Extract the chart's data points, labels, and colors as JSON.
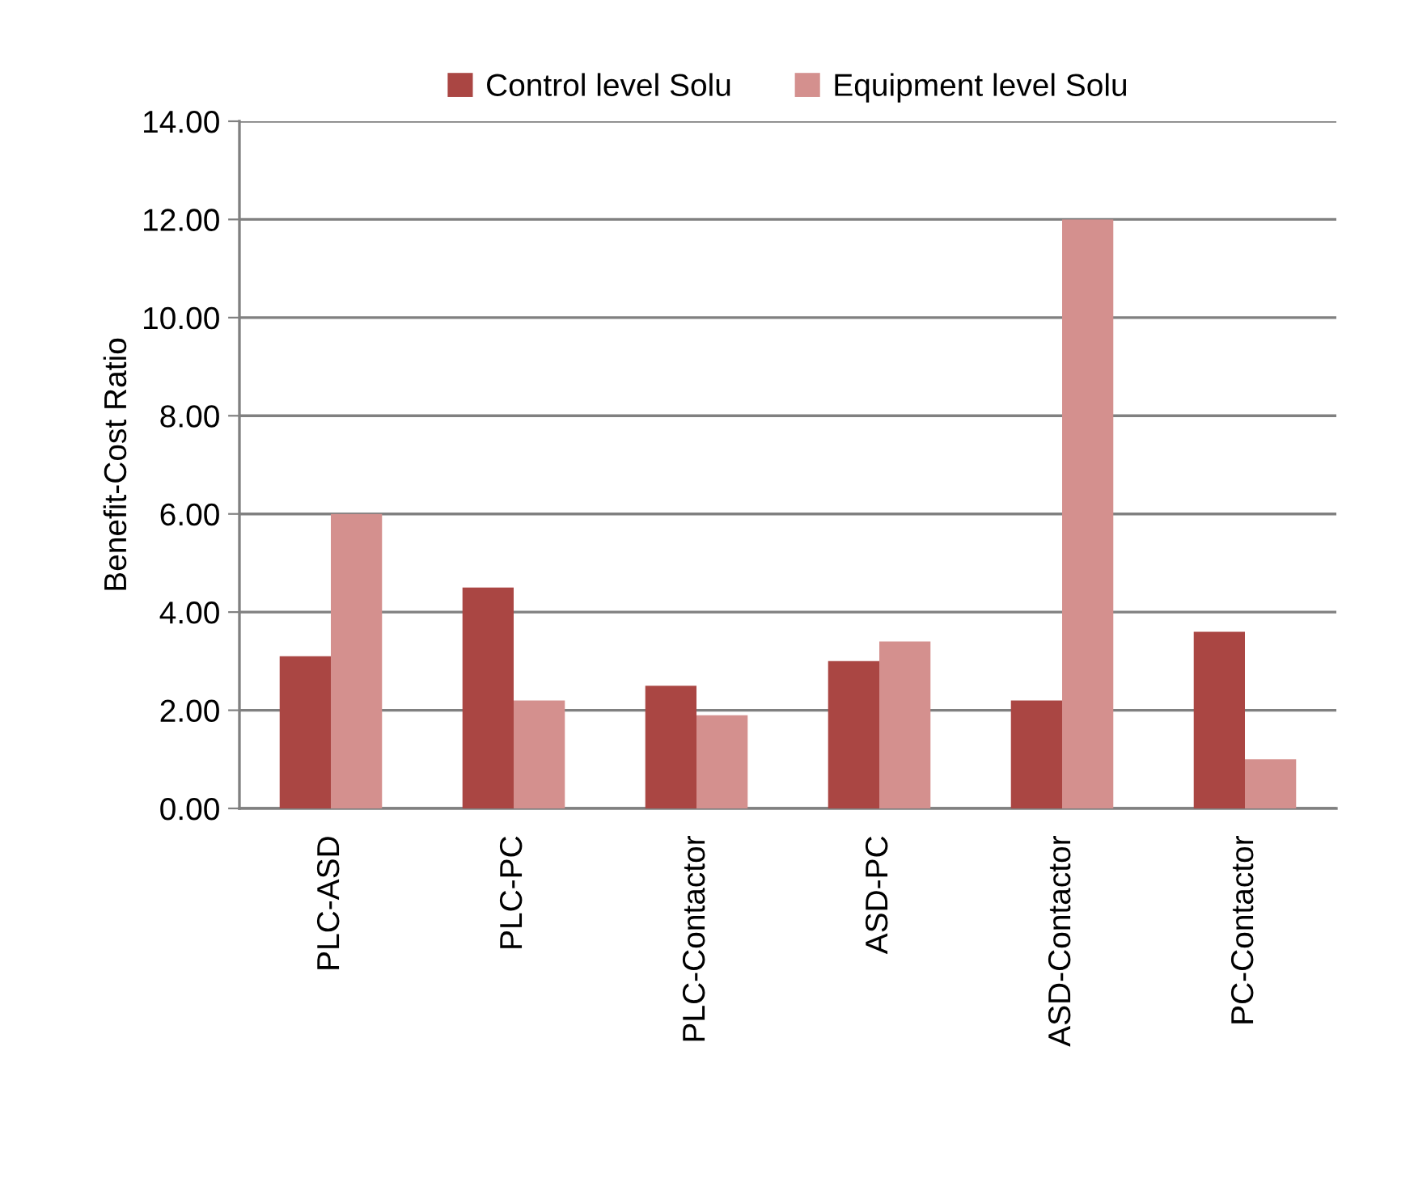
{
  "chart_data": {
    "type": "bar",
    "ylabel": "Benefit-Cost Ratio",
    "categories": [
      "PLC-ASD",
      "PLC-PC",
      "PLC-Contactor",
      "ASD-PC",
      "ASD-Contactor",
      "PC-Contactor"
    ],
    "series": [
      {
        "name": "Control level Solu",
        "color": "#aa4643",
        "values": [
          3.1,
          4.5,
          2.5,
          3.0,
          2.2,
          3.6
        ]
      },
      {
        "name": "Equipment level Solu",
        "color": "#d4908e",
        "values": [
          6.0,
          2.2,
          1.9,
          3.4,
          12.0,
          1.0
        ]
      }
    ],
    "ylim": [
      0,
      14
    ],
    "yticks": [
      {
        "value": 0,
        "label": "0.00"
      },
      {
        "value": 2,
        "label": "2.00"
      },
      {
        "value": 4,
        "label": "4.00"
      },
      {
        "value": 6,
        "label": "6.00"
      },
      {
        "value": 8,
        "label": "8.00"
      },
      {
        "value": 10,
        "label": "10.00"
      },
      {
        "value": 12,
        "label": "12.00"
      },
      {
        "value": 14,
        "label": "14.00"
      }
    ],
    "grid": "y",
    "legend": "top"
  }
}
